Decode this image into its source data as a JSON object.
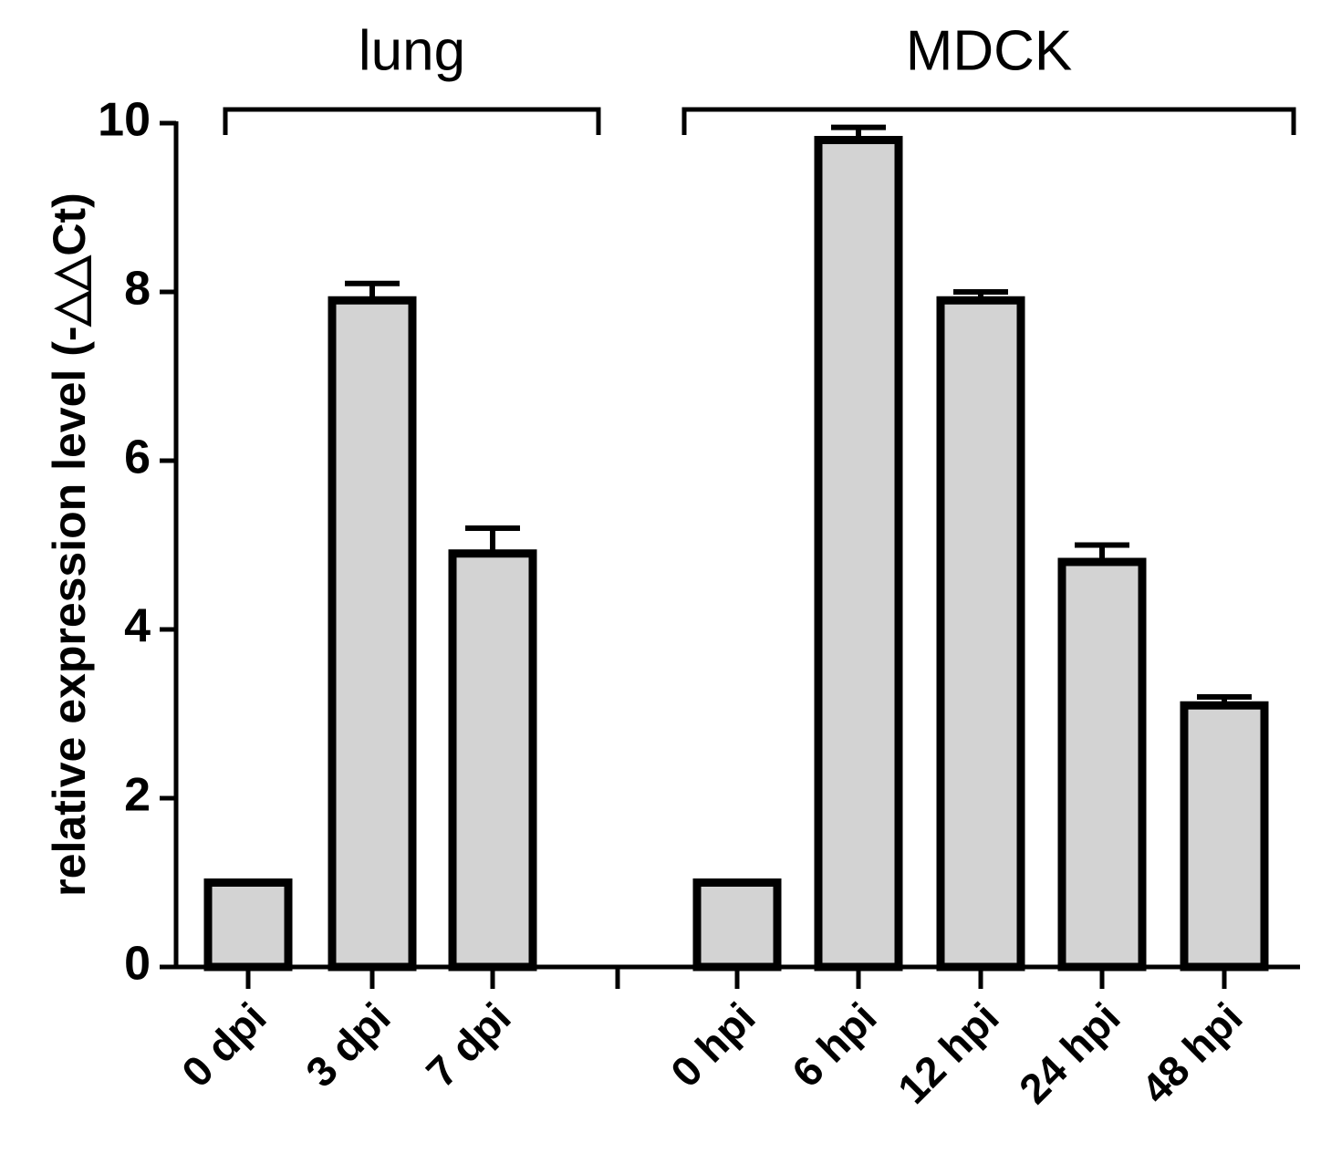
{
  "chart_data": {
    "type": "bar",
    "ylabel": "relative expression level (-△△Ct)",
    "ylim": [
      0,
      10
    ],
    "yticks": [
      "0",
      "2",
      "4",
      "6",
      "8",
      "10"
    ],
    "grid": false,
    "bar_color": "#d3d3d3",
    "groups": [
      {
        "label": "lung",
        "categories": [
          "0 dpi",
          "3 dpi",
          "7 dpi"
        ],
        "values": [
          1.0,
          7.9,
          4.9
        ],
        "errors": [
          0.0,
          0.2,
          0.3
        ]
      },
      {
        "label": "MDCK",
        "categories": [
          "0 hpi",
          "6 hpi",
          "12 hpi",
          "24 hpi",
          "48 hpi"
        ],
        "values": [
          1.0,
          9.8,
          7.9,
          4.8,
          3.1
        ],
        "errors": [
          0.0,
          0.15,
          0.1,
          0.2,
          0.1
        ]
      }
    ]
  }
}
